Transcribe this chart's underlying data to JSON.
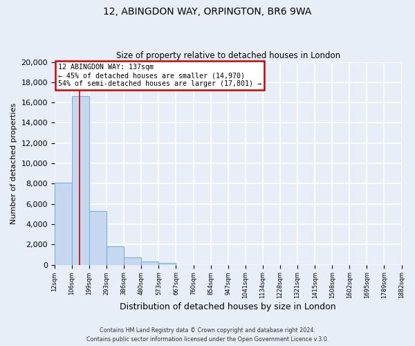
{
  "title": "12, ABINGDON WAY, ORPINGTON, BR6 9WA",
  "subtitle": "Size of property relative to detached houses in London",
  "xlabel": "Distribution of detached houses by size in London",
  "ylabel": "Number of detached properties",
  "bin_labels": [
    "12sqm",
    "106sqm",
    "199sqm",
    "293sqm",
    "386sqm",
    "480sqm",
    "573sqm",
    "667sqm",
    "760sqm",
    "854sqm",
    "947sqm",
    "1041sqm",
    "1134sqm",
    "1228sqm",
    "1321sqm",
    "1415sqm",
    "1508sqm",
    "1602sqm",
    "1695sqm",
    "1789sqm",
    "1882sqm"
  ],
  "bar_values": [
    8100,
    16600,
    5300,
    1800,
    700,
    300,
    150,
    0,
    0,
    0,
    0,
    0,
    0,
    0,
    0,
    0,
    0,
    0,
    0,
    0
  ],
  "bar_color": "#c5d8f0",
  "bar_edge_color": "#7aaedc",
  "vline_x": 1.45,
  "annotation_title": "12 ABINGDON WAY: 137sqm",
  "annotation_line1": "← 45% of detached houses are smaller (14,970)",
  "annotation_line2": "54% of semi-detached houses are larger (17,801) →",
  "annotation_box_color": "#ffffff",
  "annotation_box_edge_color": "#cc0000",
  "vline_color": "#cc0000",
  "ylim": [
    0,
    20000
  ],
  "yticks": [
    0,
    2000,
    4000,
    6000,
    8000,
    10000,
    12000,
    14000,
    16000,
    18000,
    20000
  ],
  "footer1": "Contains HM Land Registry data © Crown copyright and database right 2024.",
  "footer2": "Contains public sector information licensed under the Open Government Licence v.3.0.",
  "bg_color": "#e8eef8",
  "plot_bg_color": "#e8eef8",
  "grid_color": "#ffffff"
}
